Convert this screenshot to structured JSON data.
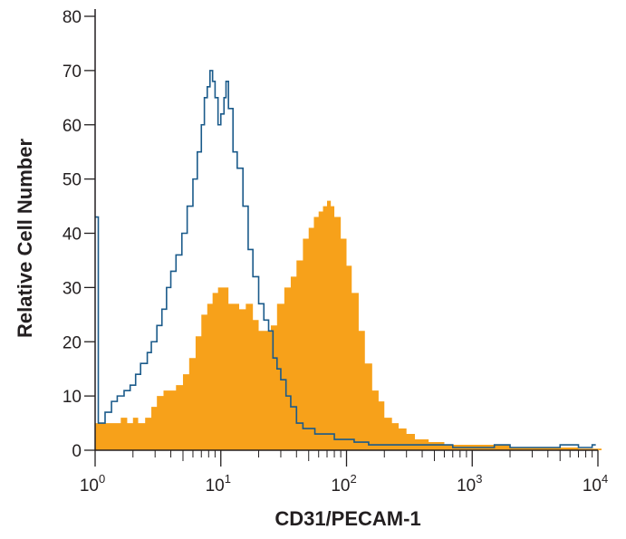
{
  "chart_data": {
    "type": "histogram",
    "xlabel": "CD31/PECAM-1",
    "ylabel": "Relative Cell Number",
    "xscale": "log",
    "xlim": [
      1,
      10000
    ],
    "ylim": [
      0,
      80
    ],
    "x_ticks": [
      {
        "base": "10",
        "exp": "0"
      },
      {
        "base": "10",
        "exp": "1"
      },
      {
        "base": "10",
        "exp": "2"
      },
      {
        "base": "10",
        "exp": "3"
      },
      {
        "base": "10",
        "exp": "4"
      }
    ],
    "y_ticks": [
      "0",
      "10",
      "20",
      "30",
      "40",
      "50",
      "60",
      "70",
      "80"
    ],
    "grid": false,
    "series": [
      {
        "style": "filled",
        "color": "#f7a11a",
        "points": [
          [
            1,
            5
          ],
          [
            1.2,
            5
          ],
          [
            1.4,
            5
          ],
          [
            1.6,
            6
          ],
          [
            1.8,
            5
          ],
          [
            2,
            6
          ],
          [
            2.2,
            5
          ],
          [
            2.5,
            6
          ],
          [
            2.8,
            8
          ],
          [
            3.1,
            10
          ],
          [
            3.5,
            11
          ],
          [
            3.9,
            11
          ],
          [
            4.4,
            12
          ],
          [
            5,
            14
          ],
          [
            5.6,
            17
          ],
          [
            6.3,
            21
          ],
          [
            7,
            25
          ],
          [
            7.8,
            27
          ],
          [
            8.6,
            29
          ],
          [
            9.5,
            30
          ],
          [
            10.5,
            30
          ],
          [
            11.5,
            27
          ],
          [
            12.5,
            27
          ],
          [
            14,
            26
          ],
          [
            15.8,
            27
          ],
          [
            18,
            24
          ],
          [
            20,
            22
          ],
          [
            22.5,
            22
          ],
          [
            25,
            23
          ],
          [
            28,
            27
          ],
          [
            32,
            30
          ],
          [
            36,
            32
          ],
          [
            40,
            35
          ],
          [
            45,
            39
          ],
          [
            50,
            41
          ],
          [
            55,
            43
          ],
          [
            60,
            44
          ],
          [
            65,
            45
          ],
          [
            70,
            46
          ],
          [
            75,
            45
          ],
          [
            80,
            43
          ],
          [
            90,
            39
          ],
          [
            100,
            34
          ],
          [
            110,
            29
          ],
          [
            125,
            22
          ],
          [
            140,
            16
          ],
          [
            160,
            11
          ],
          [
            180,
            9
          ],
          [
            200,
            6
          ],
          [
            230,
            5
          ],
          [
            260,
            4
          ],
          [
            300,
            3
          ],
          [
            350,
            2
          ],
          [
            400,
            2
          ],
          [
            450,
            1.5
          ],
          [
            500,
            1.5
          ],
          [
            600,
            1
          ],
          [
            700,
            1
          ],
          [
            800,
            1
          ],
          [
            900,
            1
          ],
          [
            1000,
            1
          ],
          [
            1300,
            1
          ],
          [
            1600,
            1
          ],
          [
            2000,
            0.5
          ],
          [
            3000,
            0.5
          ],
          [
            5000,
            0.5
          ],
          [
            7000,
            0.3
          ],
          [
            10000,
            0.3
          ]
        ]
      },
      {
        "style": "outline",
        "color": "#1a5a8a",
        "points": [
          [
            1,
            43
          ],
          [
            1.06,
            5
          ],
          [
            1.2,
            7
          ],
          [
            1.35,
            9
          ],
          [
            1.5,
            10
          ],
          [
            1.7,
            11
          ],
          [
            1.9,
            12
          ],
          [
            2.1,
            14
          ],
          [
            2.3,
            16
          ],
          [
            2.6,
            18
          ],
          [
            2.8,
            20
          ],
          [
            3.1,
            23
          ],
          [
            3.4,
            26
          ],
          [
            3.7,
            30
          ],
          [
            4,
            33
          ],
          [
            4.4,
            36
          ],
          [
            4.9,
            40
          ],
          [
            5.4,
            45
          ],
          [
            6,
            50
          ],
          [
            6.5,
            55
          ],
          [
            7,
            60
          ],
          [
            7.4,
            65
          ],
          [
            7.8,
            67
          ],
          [
            8.2,
            70
          ],
          [
            8.6,
            68
          ],
          [
            9,
            65
          ],
          [
            9.5,
            60
          ],
          [
            10,
            62
          ],
          [
            10.6,
            65
          ],
          [
            11,
            68
          ],
          [
            11.5,
            63
          ],
          [
            12.5,
            55
          ],
          [
            13.5,
            52
          ],
          [
            15,
            45
          ],
          [
            16.5,
            37
          ],
          [
            18,
            32
          ],
          [
            20,
            27
          ],
          [
            22,
            24
          ],
          [
            24,
            22
          ],
          [
            26,
            17
          ],
          [
            28,
            15
          ],
          [
            30,
            13
          ],
          [
            33,
            10
          ],
          [
            36,
            8
          ],
          [
            40,
            5
          ],
          [
            45,
            4
          ],
          [
            50,
            4
          ],
          [
            56,
            3
          ],
          [
            63,
            3
          ],
          [
            70,
            3
          ],
          [
            80,
            2
          ],
          [
            90,
            2
          ],
          [
            100,
            2
          ],
          [
            115,
            1.5
          ],
          [
            130,
            1.5
          ],
          [
            150,
            1
          ],
          [
            200,
            1
          ],
          [
            250,
            1
          ],
          [
            300,
            1
          ],
          [
            500,
            1
          ],
          [
            700,
            0.5
          ],
          [
            1000,
            0.5
          ],
          [
            1500,
            1
          ],
          [
            2000,
            0.5
          ],
          [
            3000,
            0.5
          ],
          [
            5000,
            1
          ],
          [
            7000,
            0.5
          ],
          [
            9000,
            1
          ]
        ]
      }
    ]
  }
}
